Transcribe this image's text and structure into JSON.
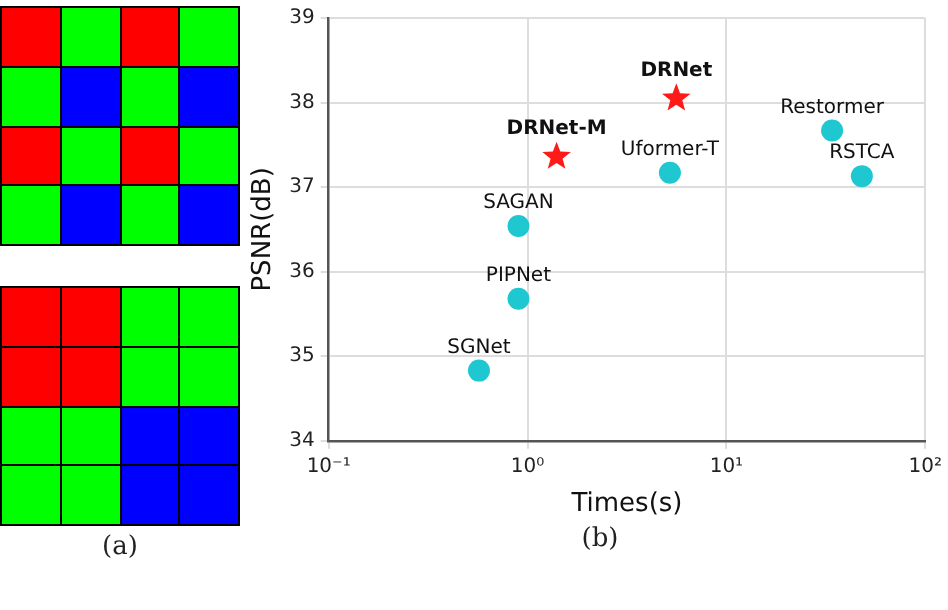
{
  "chart_data": {
    "type": "scatter",
    "xlabel": "Times(s)",
    "ylabel": "PSNR(dB)",
    "log": "x",
    "xlim": [
      0.1,
      100
    ],
    "xticks": [
      {
        "value": 0.1,
        "label": "10⁻¹"
      },
      {
        "value": 1,
        "label": "10⁰"
      },
      {
        "value": 10,
        "label": "10¹"
      },
      {
        "value": 100,
        "label": "10²"
      }
    ],
    "ylim": [
      34,
      39
    ],
    "yticks": [
      34,
      35,
      36,
      37,
      38,
      39
    ],
    "grid": true,
    "legend": false,
    "annotations": [
      "(a)",
      "(b)"
    ],
    "series": [
      {
        "name": "DRNet",
        "color": "#ff1a1a",
        "marker": "star",
        "x": [
          5.6
        ],
        "values": [
          38.05
        ]
      },
      {
        "name": "DRNet-M",
        "color": "#ff1a1a",
        "marker": "star",
        "x": [
          1.4
        ],
        "values": [
          37.36
        ]
      },
      {
        "name": "Uformer-T",
        "color": "#1fc8d0",
        "marker": "circle",
        "x": [
          5.2
        ],
        "values": [
          37.17
        ]
      },
      {
        "name": "Restormer",
        "color": "#1fc8d0",
        "marker": "circle",
        "x": [
          34
        ],
        "values": [
          37.67
        ]
      },
      {
        "name": "RSTCA",
        "color": "#1fc8d0",
        "marker": "circle",
        "x": [
          48
        ],
        "values": [
          37.13
        ]
      },
      {
        "name": "SAGAN",
        "color": "#1fc8d0",
        "marker": "circle",
        "x": [
          0.9
        ],
        "values": [
          36.54
        ]
      },
      {
        "name": "PIPNet",
        "color": "#1fc8d0",
        "marker": "circle",
        "x": [
          0.9
        ],
        "values": [
          35.68
        ]
      },
      {
        "name": "SGNet",
        "color": "#1fc8d0",
        "marker": "circle",
        "x": [
          0.57
        ],
        "values": [
          34.83
        ]
      }
    ]
  }
}
